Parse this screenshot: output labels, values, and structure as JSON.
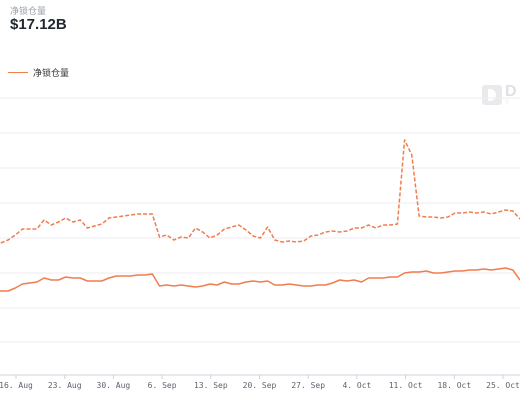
{
  "header": {
    "label": "净锁仓量",
    "value": "$17.12B"
  },
  "legend": {
    "label": "净锁仓量",
    "color": "#ef7d4e"
  },
  "watermark": {
    "icon": "defillama-logo-icon",
    "text": "D",
    "subtext": "Y"
  },
  "colors": {
    "series": "#ef7d4e",
    "grid": "#eceef1",
    "axis_text": "#5c6370"
  },
  "chart_data": {
    "type": "line",
    "x_tick_labels": [
      "16. Aug",
      "23. Aug",
      "30. Aug",
      "6. Sep",
      "13. Sep",
      "20. Sep",
      "27. Sep",
      "4. Oct",
      "11. Oct",
      "18. Oct",
      "25. Oct"
    ],
    "x_range": [
      "2021-08-12",
      "2021-10-27"
    ],
    "grid": "horizontal",
    "y_tick_labels_visible": false,
    "series": [
      {
        "name": "净锁仓量",
        "style": "solid",
        "x": [
          "2021-08-12",
          "2021-08-14",
          "2021-08-16",
          "2021-08-17",
          "2021-08-18",
          "2021-08-19",
          "2021-08-20",
          "2021-08-21",
          "2021-08-22",
          "2021-08-23",
          "2021-08-24",
          "2021-08-25",
          "2021-08-26",
          "2021-08-27",
          "2021-08-28",
          "2021-08-29",
          "2021-08-30",
          "2021-08-31",
          "2021-09-01",
          "2021-09-02",
          "2021-09-03",
          "2021-09-04",
          "2021-09-05",
          "2021-09-06",
          "2021-09-07",
          "2021-09-08",
          "2021-09-09",
          "2021-09-10",
          "2021-09-11",
          "2021-09-12",
          "2021-09-13",
          "2021-09-14",
          "2021-09-15",
          "2021-09-16",
          "2021-09-17",
          "2021-09-18",
          "2021-09-19",
          "2021-09-20",
          "2021-09-21",
          "2021-09-22",
          "2021-09-23",
          "2021-09-24",
          "2021-09-25",
          "2021-09-26",
          "2021-09-27",
          "2021-09-28",
          "2021-09-29",
          "2021-09-30",
          "2021-10-01",
          "2021-10-02",
          "2021-10-03",
          "2021-10-04",
          "2021-10-05",
          "2021-10-06",
          "2021-10-07",
          "2021-10-08",
          "2021-10-09",
          "2021-10-10",
          "2021-10-11",
          "2021-10-12",
          "2021-10-13",
          "2021-10-14",
          "2021-10-15",
          "2021-10-16",
          "2021-10-17",
          "2021-10-18",
          "2021-10-19",
          "2021-10-20",
          "2021-10-21",
          "2021-10-22",
          "2021-10-23",
          "2021-10-24",
          "2021-10-25",
          "2021-10-26",
          "2021-10-27"
        ],
        "y": [
          287,
          287,
          291,
          291,
          288,
          284,
          283,
          282,
          278,
          280,
          280,
          277,
          278,
          278,
          281,
          281,
          281,
          278,
          276,
          276,
          276,
          275,
          275,
          274,
          286,
          285,
          286,
          285,
          286,
          287,
          286,
          284,
          285,
          282,
          284,
          284,
          282,
          281,
          282,
          281,
          285,
          285,
          284,
          285,
          286,
          286,
          285,
          285,
          283,
          280,
          281,
          280,
          282,
          278,
          278,
          278,
          277,
          277,
          273,
          272,
          272,
          271,
          273,
          273,
          272,
          271,
          271,
          270,
          270,
          269,
          270,
          269,
          268,
          270,
          280
        ]
      },
      {
        "name": "",
        "style": "dashed",
        "x": [
          "2021-08-12",
          "2021-08-14",
          "2021-08-16",
          "2021-08-17",
          "2021-08-18",
          "2021-08-19",
          "2021-08-20",
          "2021-08-21",
          "2021-08-22",
          "2021-08-23",
          "2021-08-24",
          "2021-08-25",
          "2021-08-26",
          "2021-08-27",
          "2021-08-28",
          "2021-08-29",
          "2021-08-30",
          "2021-08-31",
          "2021-09-01",
          "2021-09-02",
          "2021-09-03",
          "2021-09-04",
          "2021-09-05",
          "2021-09-06",
          "2021-09-07",
          "2021-09-08",
          "2021-09-09",
          "2021-09-10",
          "2021-09-11",
          "2021-09-12",
          "2021-09-13",
          "2021-09-14",
          "2021-09-15",
          "2021-09-16",
          "2021-09-17",
          "2021-09-18",
          "2021-09-19",
          "2021-09-20",
          "2021-09-21",
          "2021-09-22",
          "2021-09-23",
          "2021-09-24",
          "2021-09-25",
          "2021-09-26",
          "2021-09-27",
          "2021-09-28",
          "2021-09-29",
          "2021-09-30",
          "2021-10-01",
          "2021-10-02",
          "2021-10-03",
          "2021-10-04",
          "2021-10-05",
          "2021-10-06",
          "2021-10-07",
          "2021-10-08",
          "2021-10-09",
          "2021-10-10",
          "2021-10-11",
          "2021-10-12",
          "2021-10-13",
          "2021-10-14",
          "2021-10-15",
          "2021-10-16",
          "2021-10-17",
          "2021-10-18",
          "2021-10-19",
          "2021-10-20",
          "2021-10-21",
          "2021-10-22",
          "2021-10-23",
          "2021-10-24",
          "2021-10-25",
          "2021-10-26",
          "2021-10-27"
        ],
        "y": [
          237,
          237,
          243,
          240,
          235,
          229,
          229,
          229,
          220,
          225,
          222,
          218,
          222,
          220,
          228,
          226,
          224,
          218,
          217,
          216,
          215,
          214,
          214,
          214,
          237,
          235,
          240,
          237,
          238,
          228,
          232,
          238,
          235,
          229,
          227,
          225,
          230,
          236,
          238,
          227,
          240,
          242,
          241,
          242,
          241,
          236,
          235,
          232,
          231,
          232,
          231,
          228,
          228,
          225,
          228,
          225,
          225,
          224,
          140,
          155,
          216,
          217,
          217,
          218,
          217,
          213,
          213,
          212,
          213,
          212,
          214,
          212,
          210,
          211,
          219
        ]
      }
    ]
  }
}
